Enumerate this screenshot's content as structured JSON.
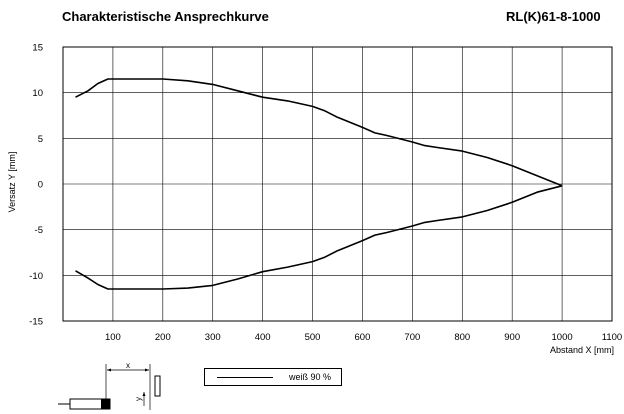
{
  "header": {
    "title": "Charakteristische Ansprechkurve",
    "model": "RL(K)61-8-1000"
  },
  "legend": {
    "label": "weiß 90 %"
  },
  "schematic": {
    "label_x": "x",
    "label_y": "y"
  },
  "chart_data": {
    "type": "line",
    "title": "Charakteristische Ansprechkurve",
    "xlabel": "Abstand X [mm]",
    "ylabel": "Versatz Y [mm]",
    "xlim": [
      0,
      1100
    ],
    "ylim": [
      -15,
      15
    ],
    "xticks": [
      100,
      200,
      300,
      400,
      500,
      600,
      700,
      800,
      900,
      1000,
      1100
    ],
    "yticks": [
      15,
      10,
      5,
      0,
      -5,
      -10,
      -15
    ],
    "grid": true,
    "legend_position": "bottom",
    "series": [
      {
        "name": "weiß 90 %",
        "x": [
          25,
          50,
          70,
          90,
          100,
          150,
          200,
          250,
          300,
          350,
          400,
          450,
          500,
          525,
          550,
          600,
          625,
          650,
          700,
          725,
          750,
          800,
          850,
          900,
          950,
          1000
        ],
        "y_upper": [
          9.5,
          10.2,
          11.0,
          11.5,
          11.5,
          11.5,
          11.5,
          11.3,
          10.9,
          10.2,
          9.5,
          9.1,
          8.5,
          8.0,
          7.3,
          6.2,
          5.6,
          5.3,
          4.6,
          4.2,
          4.0,
          3.6,
          2.9,
          2.0,
          0.9,
          -0.2
        ],
        "y_lower": [
          -9.5,
          -10.3,
          -11.0,
          -11.5,
          -11.5,
          -11.5,
          -11.5,
          -11.4,
          -11.1,
          -10.4,
          -9.6,
          -9.1,
          -8.5,
          -8.0,
          -7.3,
          -6.2,
          -5.6,
          -5.3,
          -4.6,
          -4.2,
          -4.0,
          -3.6,
          -2.9,
          -2.0,
          -0.9,
          -0.2
        ]
      }
    ]
  }
}
